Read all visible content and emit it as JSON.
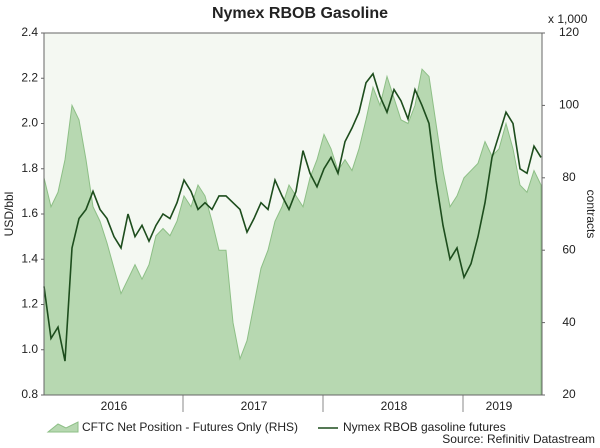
{
  "chart_data": {
    "type": "line",
    "title": "Nymex RBOB Gasoline",
    "y_label": "USD/bbl",
    "y2_label": "contracts",
    "y2_unit": "x 1,000",
    "source": "Source: Refinitiv Datastream",
    "categories": [
      null,
      null,
      null,
      null,
      null,
      null,
      null,
      null,
      null,
      null,
      "2016",
      null,
      null,
      null,
      null,
      null,
      null,
      null,
      null,
      null,
      null,
      null,
      null,
      null,
      null,
      null,
      null,
      null,
      null,
      null,
      "2017",
      null,
      null,
      null,
      null,
      null,
      null,
      null,
      null,
      null,
      null,
      null,
      null,
      null,
      null,
      null,
      null,
      null,
      null,
      null,
      "2018",
      null,
      null,
      null,
      null,
      null,
      null,
      null,
      null,
      null,
      null,
      null,
      null,
      null,
      null,
      "2019",
      null,
      null,
      null,
      null,
      null,
      null
    ],
    "ylim": [
      0.8,
      2.4
    ],
    "yticks": [
      0.8,
      {
        "value": 1,
        "label": "1.0"
      },
      1.2,
      1.4,
      1.6,
      1.8,
      {
        "value": 2,
        "label": "2.0"
      },
      2.2,
      2.4
    ],
    "y2lim": [
      20,
      120
    ],
    "y2ticks": [
      20,
      40,
      60,
      80,
      100,
      120
    ],
    "grid": false,
    "legend": "bottom",
    "series": [
      {
        "name": "CFTC Net Position - Futures Only (RHS)",
        "type": "area",
        "axis": "y2",
        "color": "#b7d8b1",
        "values": [
          80,
          72,
          76,
          85,
          100,
          96,
          85,
          72,
          68,
          62,
          55,
          48,
          52,
          56,
          52,
          56,
          64,
          66,
          64,
          68,
          75,
          72,
          78,
          75,
          68,
          60,
          60,
          40,
          30,
          35,
          45,
          55,
          60,
          68,
          72,
          78,
          75,
          72,
          80,
          85,
          92,
          88,
          82,
          85,
          82,
          88,
          96,
          105,
          100,
          108,
          102,
          96,
          95,
          100,
          110,
          108,
          95,
          82,
          72,
          75,
          80,
          82,
          84,
          90,
          86,
          88,
          95,
          88,
          78,
          76,
          82,
          78
        ]
      },
      {
        "name": "Nymex RBOB gasoline futures",
        "type": "line",
        "color": "#1d4d1d",
        "values": [
          1.28,
          1.05,
          1.1,
          0.95,
          1.45,
          1.58,
          1.62,
          1.7,
          1.62,
          1.58,
          1.5,
          1.45,
          1.6,
          1.5,
          1.55,
          1.48,
          1.55,
          1.6,
          1.58,
          1.65,
          1.75,
          1.7,
          1.62,
          1.65,
          1.62,
          1.68,
          1.68,
          1.65,
          1.62,
          1.52,
          1.58,
          1.65,
          1.62,
          1.75,
          1.68,
          1.62,
          1.7,
          1.88,
          1.78,
          1.72,
          1.8,
          1.85,
          1.78,
          1.92,
          1.98,
          2.05,
          2.18,
          2.22,
          2.12,
          2.05,
          2.15,
          2.1,
          2.02,
          2.15,
          2.08,
          2.0,
          1.75,
          1.55,
          1.4,
          1.45,
          1.32,
          1.38,
          1.5,
          1.65,
          1.85,
          1.95,
          2.05,
          2.0,
          1.8,
          1.78,
          1.9,
          1.85
        ]
      }
    ]
  }
}
